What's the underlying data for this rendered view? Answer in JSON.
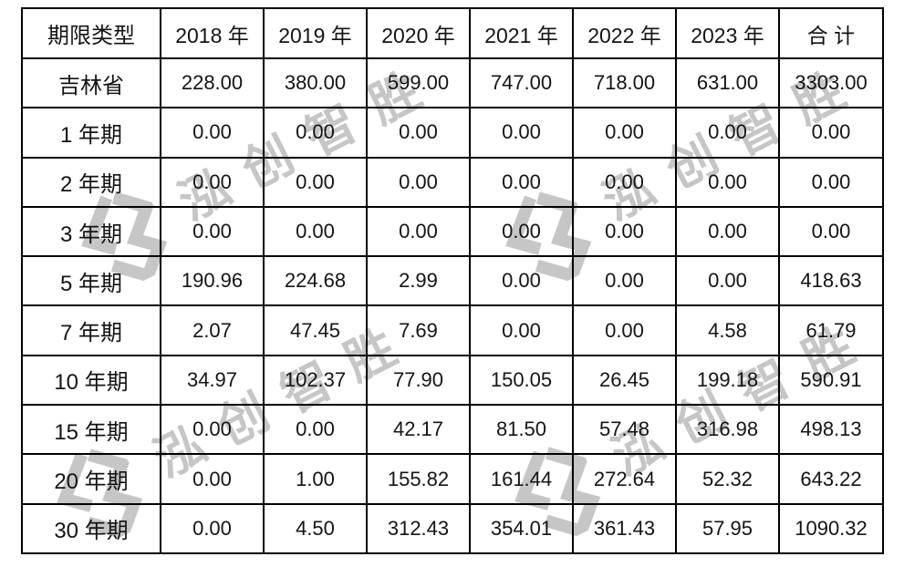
{
  "watermark": {
    "text": "泓创智胜",
    "logo_icon": "hongchuang-hexagon-logo",
    "color": "#c6c6c6"
  },
  "table": {
    "columns": [
      "期限类型",
      "2018 年",
      "2019 年",
      "2020 年",
      "2021 年",
      "2022 年",
      "2023 年",
      "合 计"
    ],
    "rows": [
      {
        "label": "吉林省",
        "values": [
          "228.00",
          "380.00",
          "599.00",
          "747.00",
          "718.00",
          "631.00",
          "3303.00"
        ]
      },
      {
        "label": "1 年期",
        "values": [
          "0.00",
          "0.00",
          "0.00",
          "0.00",
          "0.00",
          "0.00",
          "0.00"
        ]
      },
      {
        "label": "2 年期",
        "values": [
          "0.00",
          "0.00",
          "0.00",
          "0.00",
          "0.00",
          "0.00",
          "0.00"
        ]
      },
      {
        "label": "3 年期",
        "values": [
          "0.00",
          "0.00",
          "0.00",
          "0.00",
          "0.00",
          "0.00",
          "0.00"
        ]
      },
      {
        "label": "5 年期",
        "values": [
          "190.96",
          "224.68",
          "2.99",
          "0.00",
          "0.00",
          "0.00",
          "418.63"
        ]
      },
      {
        "label": "7 年期",
        "values": [
          "2.07",
          "47.45",
          "7.69",
          "0.00",
          "0.00",
          "4.58",
          "61.79"
        ]
      },
      {
        "label": "10 年期",
        "values": [
          "34.97",
          "102.37",
          "77.90",
          "150.05",
          "26.45",
          "199.18",
          "590.91"
        ]
      },
      {
        "label": "15 年期",
        "values": [
          "0.00",
          "0.00",
          "42.17",
          "81.50",
          "57.48",
          "316.98",
          "498.13"
        ]
      },
      {
        "label": "20 年期",
        "values": [
          "0.00",
          "1.00",
          "155.82",
          "161.44",
          "272.64",
          "52.32",
          "643.22"
        ]
      },
      {
        "label": "30 年期",
        "values": [
          "0.00",
          "4.50",
          "312.43",
          "354.01",
          "361.43",
          "57.95",
          "1090.32"
        ]
      }
    ]
  }
}
